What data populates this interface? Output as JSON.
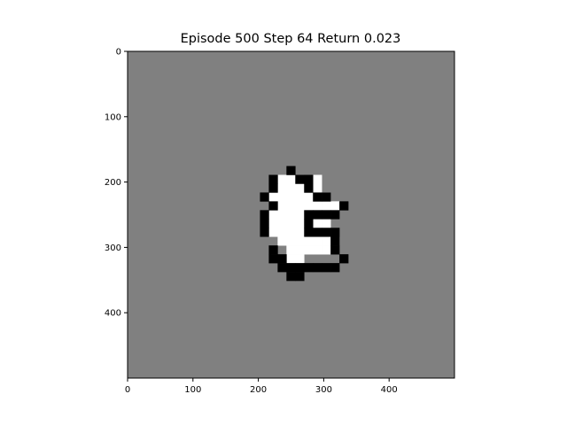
{
  "title": "Episode 500 Step 64 Return 0.023",
  "colors": {
    "background": "#808080",
    "alive": "#ffffff",
    "dead": "#000000",
    "axis": "#000000"
  },
  "chart_data": {
    "type": "heatmap",
    "title": "Episode 500 Step 64 Return 0.023",
    "xlabel": "",
    "ylabel": "",
    "xlim": [
      0,
      500
    ],
    "ylim": [
      500,
      0
    ],
    "xticks": [
      0,
      100,
      200,
      300,
      400
    ],
    "yticks": [
      0,
      100,
      200,
      300,
      400
    ],
    "grid": false,
    "cell_size": 13.5,
    "board_cells": 37,
    "cells": {
      "white": [
        [
          17,
          14
        ],
        [
          18,
          14
        ],
        [
          19,
          14
        ],
        [
          21,
          14
        ],
        [
          17,
          15
        ],
        [
          18,
          15
        ],
        [
          19,
          15
        ],
        [
          20,
          15
        ],
        [
          21,
          15
        ],
        [
          16,
          16
        ],
        [
          17,
          16
        ],
        [
          18,
          16
        ],
        [
          19,
          16
        ],
        [
          20,
          16
        ],
        [
          21,
          16
        ],
        [
          22,
          16
        ],
        [
          17,
          17
        ],
        [
          18,
          17
        ],
        [
          19,
          17
        ],
        [
          20,
          17
        ],
        [
          21,
          17
        ],
        [
          22,
          17
        ],
        [
          23,
          17
        ],
        [
          16,
          18
        ],
        [
          17,
          18
        ],
        [
          18,
          18
        ],
        [
          19,
          18
        ],
        [
          16,
          19
        ],
        [
          17,
          19
        ],
        [
          18,
          19
        ],
        [
          19,
          19
        ],
        [
          21,
          19
        ],
        [
          22,
          19
        ],
        [
          16,
          20
        ],
        [
          17,
          20
        ],
        [
          18,
          20
        ],
        [
          19,
          20
        ],
        [
          17,
          21
        ],
        [
          18,
          21
        ],
        [
          19,
          21
        ],
        [
          20,
          21
        ],
        [
          21,
          21
        ],
        [
          22,
          21
        ],
        [
          23,
          21
        ],
        [
          18,
          22
        ],
        [
          19,
          22
        ],
        [
          20,
          22
        ],
        [
          21,
          22
        ],
        [
          22,
          22
        ],
        [
          18,
          23
        ],
        [
          19,
          23
        ]
      ],
      "black": [
        [
          18,
          13
        ],
        [
          16,
          14
        ],
        [
          19,
          14
        ],
        [
          20,
          14
        ],
        [
          16,
          15
        ],
        [
          20,
          15
        ],
        [
          15,
          16
        ],
        [
          21,
          16
        ],
        [
          22,
          16
        ],
        [
          16,
          17
        ],
        [
          24,
          17
        ],
        [
          15,
          18
        ],
        [
          20,
          18
        ],
        [
          21,
          18
        ],
        [
          22,
          18
        ],
        [
          23,
          18
        ],
        [
          15,
          19
        ],
        [
          20,
          19
        ],
        [
          15,
          20
        ],
        [
          20,
          20
        ],
        [
          21,
          20
        ],
        [
          22,
          20
        ],
        [
          23,
          20
        ],
        [
          23,
          21
        ],
        [
          16,
          22
        ],
        [
          23,
          22
        ],
        [
          16,
          23
        ],
        [
          17,
          23
        ],
        [
          24,
          23
        ],
        [
          17,
          24
        ],
        [
          18,
          24
        ],
        [
          19,
          24
        ],
        [
          20,
          24
        ],
        [
          21,
          24
        ],
        [
          22,
          24
        ],
        [
          23,
          24
        ],
        [
          18,
          25
        ],
        [
          19,
          25
        ]
      ]
    }
  }
}
